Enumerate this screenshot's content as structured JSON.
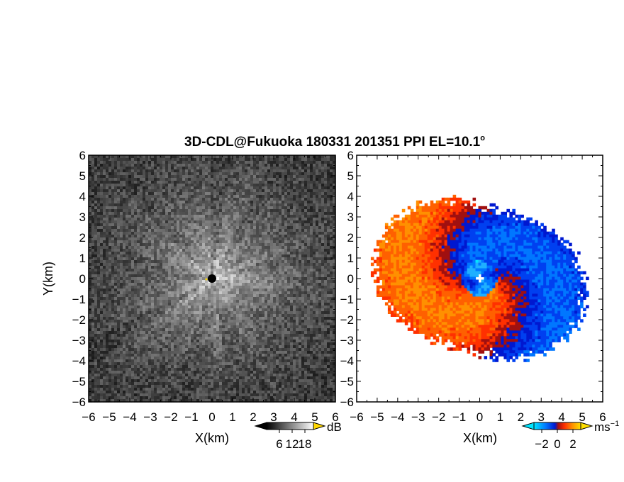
{
  "chart_data": [
    {
      "type": "heatmap",
      "title": "3D-CDL@Fukuoka 180331 201351 PPI EL=10.1°",
      "title_main": "3D-CDL@Fukuoka 180331 201351 PPI EL=10.1",
      "title_degree": "o",
      "panel": "left",
      "quantity": "SNR",
      "xlabel": "X(km)",
      "ylabel": "Y(km)",
      "xlim": [
        -6,
        6
      ],
      "ylim": [
        -6,
        6
      ],
      "x_ticks": [
        "−6",
        "−5",
        "−4",
        "−3",
        "−2",
        "−1",
        "0",
        "1",
        "2",
        "3",
        "4",
        "5",
        "6"
      ],
      "y_ticks": [
        "6",
        "5",
        "4",
        "3",
        "2",
        "1",
        "0",
        "−1",
        "−2",
        "−3",
        "−4",
        "−5",
        "−6"
      ],
      "colorbar": {
        "ticks": [
          "6",
          "12",
          "18"
        ],
        "tick_values": [
          6,
          12,
          18
        ],
        "range": [
          0,
          22
        ],
        "unit": "dB",
        "colors": [
          "#000000",
          "#ffffff"
        ],
        "over_color": "#ffd700"
      },
      "description_values": {
        "center_marker": [
          0,
          0
        ]
      }
    },
    {
      "type": "heatmap",
      "panel": "right",
      "quantity": "Doppler velocity",
      "xlabel": "X(km)",
      "xlim": [
        -6,
        6
      ],
      "ylim": [
        -6,
        6
      ],
      "x_ticks": [
        "−6",
        "−5",
        "−4",
        "−3",
        "−2",
        "−1",
        "0",
        "1",
        "2",
        "3",
        "4",
        "5",
        "6"
      ],
      "y_ticks": [
        "6",
        "5",
        "4",
        "3",
        "2",
        "1",
        "0",
        "−1",
        "−2",
        "−3",
        "−4",
        "−5",
        "−6"
      ],
      "colorbar": {
        "ticks": [
          "−2",
          "0",
          "2"
        ],
        "tick_values": [
          -2,
          0,
          2
        ],
        "range": [
          -3,
          3
        ],
        "unit_base": "ms",
        "unit_exp": "−1",
        "colors": [
          "#00e5ff",
          "#0077ff",
          "#0018d0",
          "#a01010",
          "#ff3000",
          "#ff9000",
          "#ffe000"
        ]
      }
    }
  ]
}
